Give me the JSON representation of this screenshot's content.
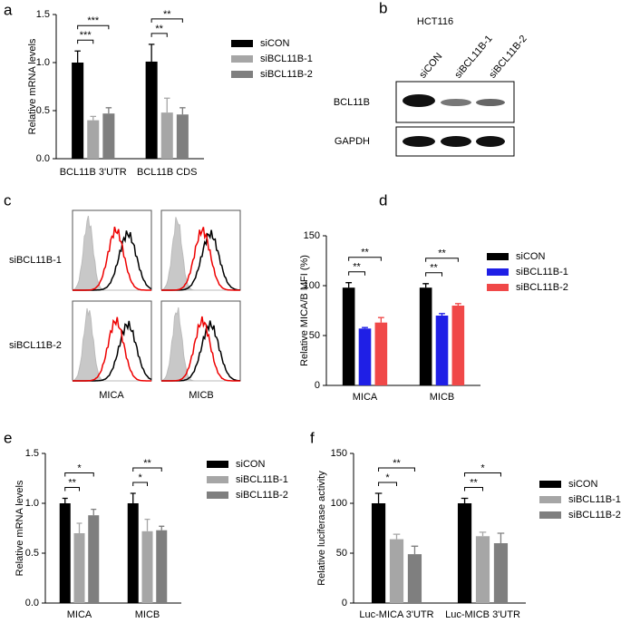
{
  "chart_data": [
    {
      "type": "bar",
      "label": "a",
      "y_label": "Relative mRNA levels",
      "categories": [
        "BCL11B 3'UTR",
        "BCL11B CDS"
      ],
      "series": [
        {
          "name": "siCON",
          "color": "#000000",
          "values": [
            1.0,
            1.01
          ],
          "errors": [
            0.12,
            0.18
          ]
        },
        {
          "name": "siBCL11B-1",
          "color": "#a6a6a6",
          "values": [
            0.4,
            0.48
          ],
          "errors": [
            0.04,
            0.15
          ]
        },
        {
          "name": "siBCL11B-2",
          "color": "#7f7f7f",
          "values": [
            0.47,
            0.46
          ],
          "errors": [
            0.06,
            0.07
          ]
        }
      ],
      "significance": [
        [
          "***",
          "***"
        ],
        [
          "**",
          "**"
        ]
      ],
      "ylim": [
        0,
        1.5
      ],
      "yticks": [
        {
          "value": 0,
          "label": "0.0"
        },
        0.5,
        {
          "value": 1,
          "label": "1.0"
        },
        1.5
      ]
    },
    {
      "type": "bar",
      "label": "d",
      "y_label": "Relative MICA/B MFI (%)",
      "categories": [
        "MICA",
        "MICB"
      ],
      "series": [
        {
          "name": "siCON",
          "color": "#000000",
          "values": [
            98,
            98
          ],
          "errors": [
            5,
            4
          ]
        },
        {
          "name": "siBCL11B-1",
          "color": "#1f1fe6",
          "values": [
            57,
            70
          ],
          "errors": [
            1,
            2
          ]
        },
        {
          "name": "siBCL11B-2",
          "color": "#f04848",
          "values": [
            63,
            80
          ],
          "errors": [
            5,
            2
          ]
        }
      ],
      "significance": [
        [
          "**",
          "**"
        ],
        [
          "**",
          "**"
        ]
      ],
      "ylim": [
        0,
        150
      ],
      "yticks": [
        0,
        50,
        100,
        150
      ]
    },
    {
      "type": "bar",
      "label": "e",
      "y_label": "Relative mRNA levels",
      "categories": [
        "MICA",
        "MICB"
      ],
      "series": [
        {
          "name": "siCON",
          "color": "#000000",
          "values": [
            1.0,
            1.0
          ],
          "errors": [
            0.05,
            0.1
          ]
        },
        {
          "name": "siBCL11B-1",
          "color": "#a6a6a6",
          "values": [
            0.7,
            0.72
          ],
          "errors": [
            0.1,
            0.12
          ]
        },
        {
          "name": "siBCL11B-2",
          "color": "#7f7f7f",
          "values": [
            0.88,
            0.73
          ],
          "errors": [
            0.06,
            0.04
          ]
        }
      ],
      "significance": [
        [
          "**",
          "*"
        ],
        [
          "*",
          "**"
        ]
      ],
      "ylim": [
        0,
        1.5
      ],
      "yticks": [
        {
          "value": 0,
          "label": "0.0"
        },
        0.5,
        {
          "value": 1,
          "label": "1.0"
        },
        1.5
      ]
    },
    {
      "type": "bar",
      "label": "f",
      "y_label": "Relative luciferase activity",
      "categories": [
        "Luc-MICA 3'UTR",
        "Luc-MICB 3'UTR"
      ],
      "series": [
        {
          "name": "siCON",
          "color": "#000000",
          "values": [
            100,
            100
          ],
          "errors": [
            10,
            5
          ]
        },
        {
          "name": "siBCL11B-1",
          "color": "#a6a6a6",
          "values": [
            64,
            67
          ],
          "errors": [
            5,
            4
          ]
        },
        {
          "name": "siBCL11B-2",
          "color": "#7f7f7f",
          "values": [
            49,
            60
          ],
          "errors": [
            8,
            10
          ]
        }
      ],
      "significance": [
        [
          "*",
          "**"
        ],
        [
          "**",
          "*"
        ]
      ],
      "ylim": [
        0,
        150
      ],
      "yticks": [
        0,
        50,
        100,
        150
      ]
    }
  ],
  "blot": {
    "label": "b",
    "cell_line": "HCT116",
    "lanes": [
      "siCON",
      "siBCL11B-1",
      "siBCL11B-2"
    ],
    "rows": [
      "BCL11B",
      "GAPDH"
    ]
  },
  "flow": {
    "label": "c",
    "rows": [
      "siBCL11B-1",
      "siBCL11B-2"
    ],
    "columns": [
      "MICA",
      "MICB"
    ]
  }
}
